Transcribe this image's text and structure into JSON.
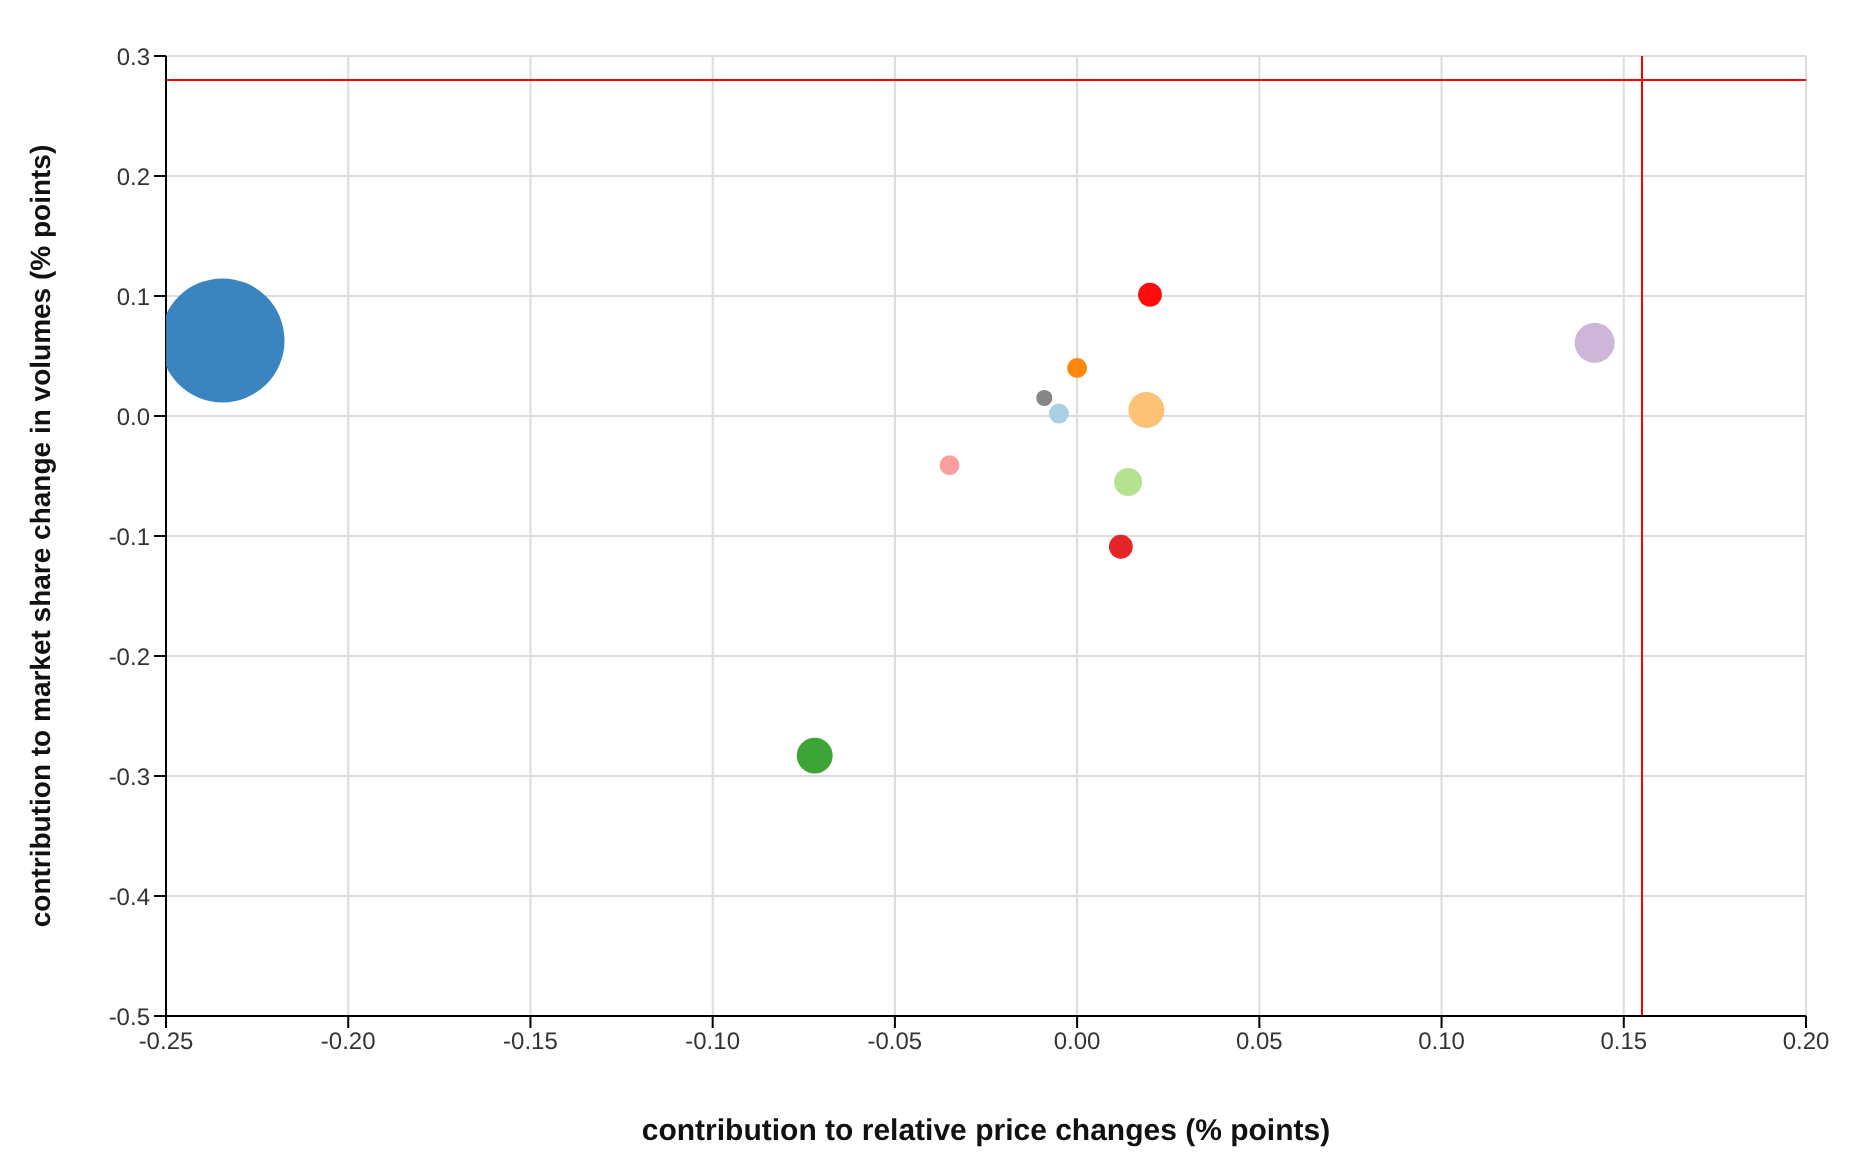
{
  "chart_data": {
    "type": "bubble",
    "xlabel": "contribution to relative price changes (% points)",
    "ylabel": "contribution to market share change in volumes (% points)",
    "x": [
      -0.2345,
      -0.072,
      -0.035,
      -0.009,
      -0.005,
      0.0,
      0.02,
      0.019,
      0.014,
      0.012,
      0.142
    ],
    "values": [
      0.063,
      -0.283,
      -0.041,
      0.015,
      0.002,
      0.04,
      0.101,
      0.005,
      -0.055,
      -0.109,
      0.061
    ],
    "sizes": [
      1,
      0.084,
      0.026,
      0.017,
      0.026,
      0.026,
      0.037,
      0.084,
      0.051,
      0.037,
      0.104
    ],
    "colors": [
      "#2f7ebc",
      "#33a02c",
      "#fb9a99",
      "#7f7f7f",
      "#a6cee3",
      "#ff7f00",
      "#ff0000",
      "#fdbf6f",
      "#b2df8a",
      "#e31a1c",
      "#cab2d6"
    ],
    "xlim": [
      -0.25,
      0.2
    ],
    "xticks": [
      {
        "value": -0.25,
        "label": "-0.25"
      },
      {
        "value": -0.2,
        "label": "-0.20"
      },
      {
        "value": -0.15,
        "label": "-0.15"
      },
      {
        "value": -0.1,
        "label": "-0.10"
      },
      {
        "value": -0.05,
        "label": "-0.05"
      },
      {
        "value": 0,
        "label": "0.00"
      },
      {
        "value": 0.05,
        "label": "0.05"
      },
      {
        "value": 0.1,
        "label": "0.10"
      },
      {
        "value": 0.15,
        "label": "0.15"
      },
      {
        "value": 0.2,
        "label": "0.20"
      }
    ],
    "ylim": [
      -0.5,
      0.3
    ],
    "yticks": [
      {
        "value": -0.5,
        "label": "-0.5"
      },
      {
        "value": -0.4,
        "label": "-0.4"
      },
      {
        "value": -0.3,
        "label": "-0.3"
      },
      {
        "value": -0.2,
        "label": "-0.2"
      },
      {
        "value": -0.1,
        "label": "-0.1"
      },
      {
        "value": 0,
        "label": "0.0"
      },
      {
        "value": 0.1,
        "label": "0.1"
      },
      {
        "value": 0.2,
        "label": "0.2"
      },
      {
        "value": 0.3,
        "label": "0.3"
      }
    ],
    "ref_lines": [
      {
        "axis": "x",
        "value": 0.155,
        "color": "#ff0000"
      },
      {
        "axis": "y",
        "value": 0.28,
        "color": "#ff0000"
      }
    ],
    "grid": true,
    "legend": false
  }
}
